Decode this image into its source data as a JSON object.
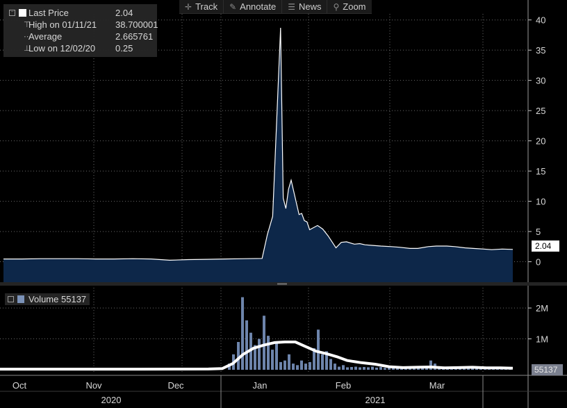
{
  "toolbar": {
    "track": "Track",
    "annotate": "Annotate",
    "news": "News",
    "zoom": "Zoom"
  },
  "legend": {
    "last_price_label": "Last Price",
    "last_price_value": "2.04",
    "high_label": "High on 01/11/21",
    "high_value": "38.700001",
    "average_label": "Average",
    "average_value": "2.665761",
    "low_label": "Low on 12/02/20",
    "low_value": "0.25"
  },
  "volume_legend": {
    "label": "Volume",
    "value": "55137"
  },
  "last_price_marker": "2.04",
  "volume_marker": "55137",
  "colors": {
    "background": "#000000",
    "price_fill": "#0d2749",
    "price_line": "#ffffff",
    "volume_bars": "#6d84ab",
    "volume_avg_line": "#ffffff",
    "grid": "#6a6a6a"
  },
  "chart_data": [
    {
      "type": "area",
      "series_name": "Last Price",
      "ylim": [
        -3.5,
        41
      ],
      "y_ticks": [
        "40",
        "35",
        "30",
        "25",
        "20",
        "15",
        "10",
        "5",
        "0"
      ],
      "grid": true,
      "x": [
        "2020-09-28",
        "2020-10-05",
        "2020-10-12",
        "2020-10-19",
        "2020-10-26",
        "2020-11-02",
        "2020-11-09",
        "2020-11-16",
        "2020-11-23",
        "2020-11-30",
        "2020-12-07",
        "2020-12-14",
        "2020-12-21",
        "2020-12-28",
        "2021-01-04",
        "2021-01-06",
        "2021-01-08",
        "2021-01-11",
        "2021-01-12",
        "2021-01-13",
        "2021-01-14",
        "2021-01-15",
        "2021-01-18",
        "2021-01-19",
        "2021-01-20",
        "2021-01-21",
        "2021-01-22",
        "2021-01-25",
        "2021-01-27",
        "2021-01-29",
        "2021-02-01",
        "2021-02-03",
        "2021-02-05",
        "2021-02-08",
        "2021-02-10",
        "2021-02-12",
        "2021-02-15",
        "2021-02-18",
        "2021-02-22",
        "2021-02-25",
        "2021-03-01",
        "2021-03-04",
        "2021-03-08",
        "2021-03-11",
        "2021-03-15",
        "2021-03-18",
        "2021-03-22",
        "2021-03-25",
        "2021-03-29",
        "2021-04-01",
        "2021-04-05",
        "2021-04-09"
      ],
      "values": [
        0.45,
        0.45,
        0.5,
        0.5,
        0.5,
        0.45,
        0.45,
        0.5,
        0.45,
        0.25,
        0.35,
        0.4,
        0.45,
        0.5,
        0.55,
        4.5,
        7.5,
        38.7,
        10.5,
        8.8,
        12.0,
        13.5,
        7.8,
        8.0,
        6.8,
        6.6,
        5.3,
        6.0,
        5.4,
        4.3,
        2.3,
        3.2,
        3.3,
        2.9,
        3.0,
        2.8,
        2.7,
        2.6,
        2.5,
        2.4,
        2.2,
        2.2,
        2.5,
        2.6,
        2.6,
        2.5,
        2.3,
        2.2,
        2.1,
        2.0,
        2.1,
        2.04
      ]
    },
    {
      "type": "bar",
      "series_name": "Volume",
      "ylim": [
        0,
        2700000
      ],
      "y_ticks": [
        "2M",
        "1M"
      ],
      "x_ticks": [
        "Oct",
        "Nov",
        "Dec",
        "Jan",
        "Feb",
        "Mar"
      ],
      "year_labels": [
        "2020",
        "2021"
      ],
      "grid": true,
      "values": [
        [
          330,
          200000
        ],
        [
          336,
          500000
        ],
        [
          343,
          900000
        ],
        [
          349,
          2350000
        ],
        [
          355,
          1600000
        ],
        [
          361,
          1200000
        ],
        [
          367,
          800000
        ],
        [
          373,
          1000000
        ],
        [
          380,
          1750000
        ],
        [
          386,
          1100000
        ],
        [
          392,
          650000
        ],
        [
          398,
          900000
        ],
        [
          404,
          250000
        ],
        [
          410,
          300000
        ],
        [
          416,
          500000
        ],
        [
          422,
          200000
        ],
        [
          428,
          150000
        ],
        [
          434,
          300000
        ],
        [
          440,
          200000
        ],
        [
          446,
          250000
        ],
        [
          452,
          700000
        ],
        [
          458,
          1300000
        ],
        [
          464,
          500000
        ],
        [
          470,
          600000
        ],
        [
          476,
          350000
        ],
        [
          482,
          200000
        ],
        [
          488,
          100000
        ],
        [
          494,
          150000
        ],
        [
          500,
          80000
        ],
        [
          506,
          90000
        ],
        [
          512,
          100000
        ],
        [
          518,
          80000
        ],
        [
          524,
          90000
        ],
        [
          530,
          80000
        ],
        [
          536,
          100000
        ],
        [
          542,
          70000
        ],
        [
          548,
          90000
        ],
        [
          554,
          60000
        ],
        [
          560,
          70000
        ],
        [
          566,
          60000
        ],
        [
          572,
          60000
        ],
        [
          578,
          60000
        ],
        [
          584,
          50000
        ],
        [
          590,
          55000
        ],
        [
          596,
          60000
        ],
        [
          602,
          50000
        ],
        [
          608,
          50000
        ],
        [
          614,
          70000
        ],
        [
          620,
          300000
        ],
        [
          626,
          200000
        ],
        [
          632,
          100000
        ],
        [
          638,
          80000
        ],
        [
          644,
          70000
        ],
        [
          650,
          60000
        ],
        [
          656,
          60000
        ],
        [
          662,
          50000
        ],
        [
          668,
          50000
        ],
        [
          674,
          60000
        ],
        [
          680,
          50000
        ],
        [
          686,
          55000
        ],
        [
          692,
          50000
        ],
        [
          698,
          50000
        ],
        [
          704,
          45000
        ],
        [
          710,
          50000
        ],
        [
          716,
          45000
        ],
        [
          722,
          50000
        ],
        [
          728,
          45000
        ],
        [
          734,
          55137
        ]
      ],
      "moving_average": [
        [
          0,
          20000
        ],
        [
          100,
          20000
        ],
        [
          200,
          20000
        ],
        [
          300,
          25000
        ],
        [
          320,
          40000
        ],
        [
          335,
          200000
        ],
        [
          350,
          500000
        ],
        [
          365,
          700000
        ],
        [
          380,
          800000
        ],
        [
          395,
          880000
        ],
        [
          410,
          900000
        ],
        [
          425,
          900000
        ],
        [
          440,
          750000
        ],
        [
          455,
          600000
        ],
        [
          470,
          520000
        ],
        [
          485,
          420000
        ],
        [
          500,
          300000
        ],
        [
          520,
          230000
        ],
        [
          540,
          180000
        ],
        [
          560,
          100000
        ],
        [
          580,
          70000
        ],
        [
          600,
          80000
        ],
        [
          620,
          90000
        ],
        [
          640,
          60000
        ],
        [
          660,
          70000
        ],
        [
          680,
          80000
        ],
        [
          700,
          60000
        ],
        [
          720,
          60000
        ],
        [
          738,
          50000
        ]
      ]
    }
  ]
}
